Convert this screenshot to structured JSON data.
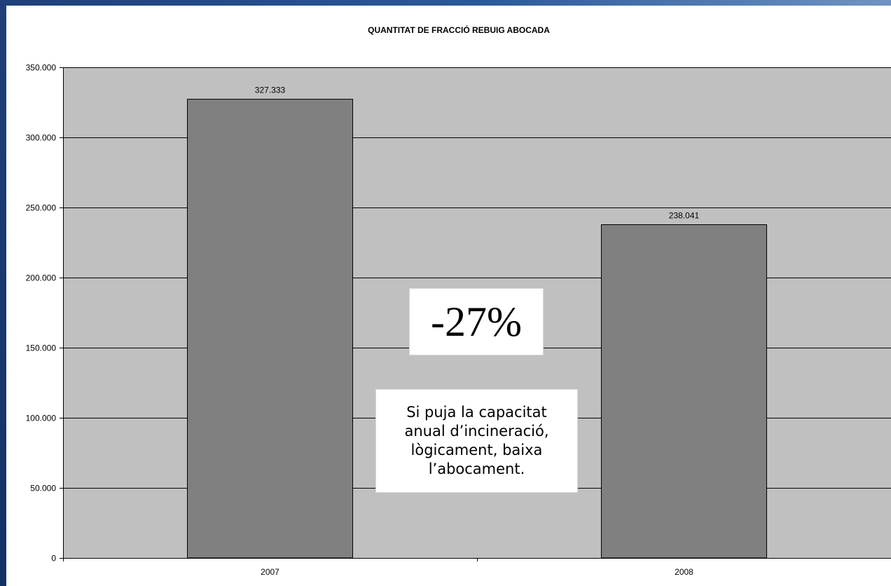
{
  "chart_data": {
    "type": "bar",
    "title": "QUANTITAT DE FRACCIÓ REBUIG ABOCADA",
    "categories": [
      "2007",
      "2008"
    ],
    "values": [
      327333,
      238041
    ],
    "data_labels": [
      "327.333",
      "238.041"
    ],
    "ylim": [
      0,
      350000
    ],
    "yticks": [
      0,
      50000,
      100000,
      150000,
      200000,
      250000,
      300000,
      350000
    ],
    "ytick_labels": [
      "0",
      "50.000",
      "100.000",
      "150.000",
      "200.000",
      "250.000",
      "300.000",
      "350.000"
    ],
    "xlabel": "",
    "ylabel": "",
    "grid": true,
    "legend": "none",
    "colors": {
      "bar": "#808080",
      "plot_area": "#c0c0c0",
      "gridline": "#000000"
    },
    "annotations": {
      "change": "-27%",
      "note_lines": [
        "Si puja la capacitat",
        "anual d’incineració,",
        "lògicament, baixa",
        "l’abocament."
      ]
    }
  }
}
